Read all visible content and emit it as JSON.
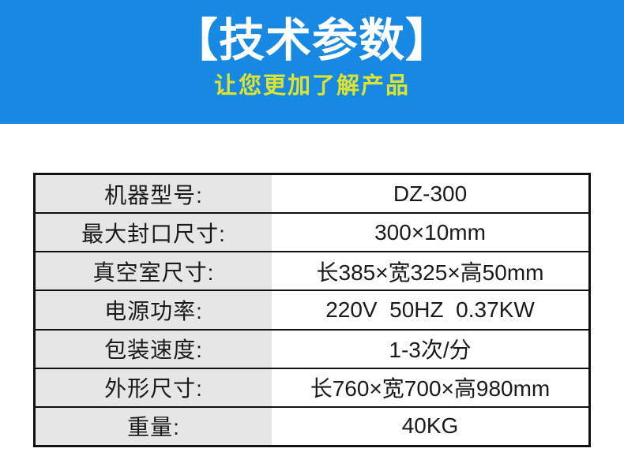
{
  "banner": {
    "title": "【技术参数】",
    "subtitle": "让您更加了解产品",
    "bg_color": "#1789e2",
    "title_color": "#ffffff",
    "subtitle_color": "#dce431"
  },
  "table": {
    "label_bg": "#e6e6e6",
    "border_color": "#111111",
    "text_color": "#1a1a1a",
    "rows": [
      {
        "label": "机器型号:",
        "value": "DZ-300"
      },
      {
        "label": "最大封口尺寸:",
        "value": "300×10mm"
      },
      {
        "label": "真空室尺寸:",
        "value": "长385×宽325×高50mm"
      },
      {
        "label": "电源功率:",
        "value": "220V  50HZ  0.37KW"
      },
      {
        "label": "包装速度:",
        "value": "1-3次/分"
      },
      {
        "label": "外形尺寸:",
        "value": "长760×宽700×高980mm"
      },
      {
        "label": "重量:",
        "value": "40KG"
      }
    ]
  }
}
